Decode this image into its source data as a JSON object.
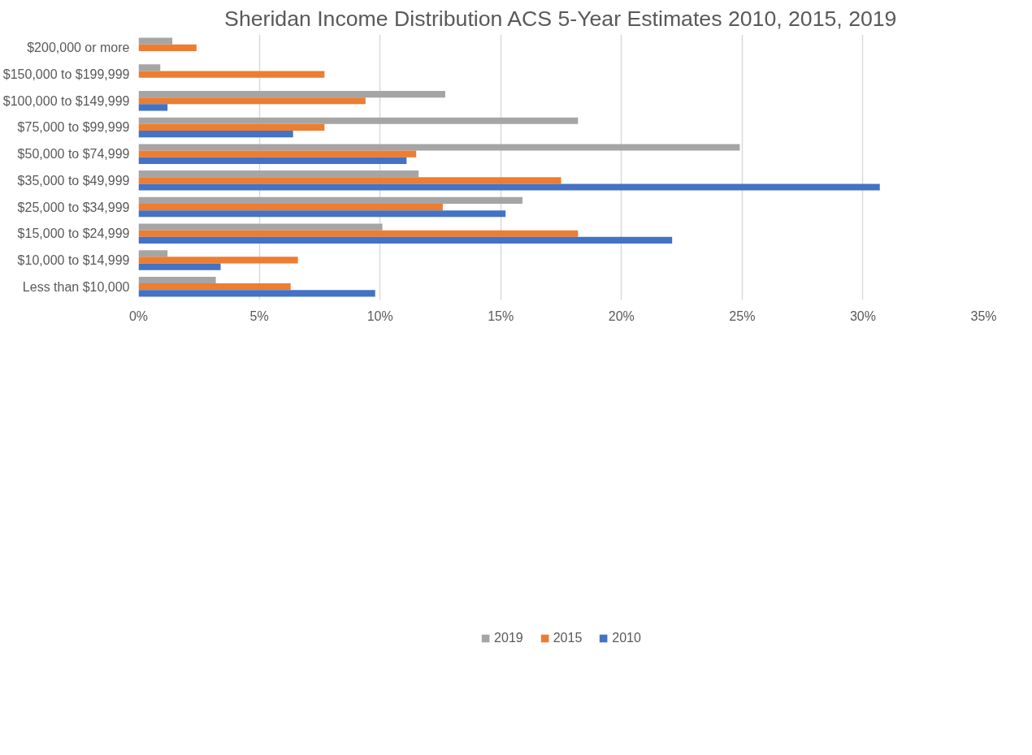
{
  "chart_data": {
    "type": "bar",
    "orientation": "horizontal",
    "title": "Sheridan Income Distribution ACS 5-Year Estimates 2010, 2015, 2019",
    "categories": [
      "$200,000 or more",
      "$150,000 to $199,999",
      "$100,000 to $149,999",
      "$75,000 to $99,999",
      "$50,000 to $74,999",
      "$35,000 to $49,999",
      "$25,000 to $34,999",
      "$15,000 to $24,999",
      "$10,000 to $14,999",
      "Less than $10,000"
    ],
    "series": [
      {
        "name": "2019",
        "color": "#a5a5a5",
        "values": [
          1.4,
          0.9,
          12.7,
          18.2,
          24.9,
          11.6,
          15.9,
          10.1,
          1.2,
          3.2
        ]
      },
      {
        "name": "2015",
        "color": "#ed7d31",
        "values": [
          2.4,
          7.7,
          9.4,
          7.7,
          11.5,
          17.5,
          12.6,
          18.2,
          6.6,
          6.3
        ]
      },
      {
        "name": "2010",
        "color": "#4472c4",
        "values": [
          null,
          null,
          1.2,
          6.4,
          11.1,
          30.7,
          15.2,
          22.1,
          3.4,
          9.8
        ]
      }
    ],
    "xlim": [
      0,
      35
    ],
    "xticks": [
      {
        "value": 0,
        "label": "0%"
      },
      {
        "value": 5,
        "label": "5%"
      },
      {
        "value": 10,
        "label": "10%"
      },
      {
        "value": 15,
        "label": "15%"
      },
      {
        "value": 20,
        "label": "20%"
      },
      {
        "value": 25,
        "label": "25%"
      },
      {
        "value": 30,
        "label": "30%"
      },
      {
        "value": 35,
        "label": "35%"
      }
    ],
    "grid": "x",
    "legend": "bottom"
  }
}
